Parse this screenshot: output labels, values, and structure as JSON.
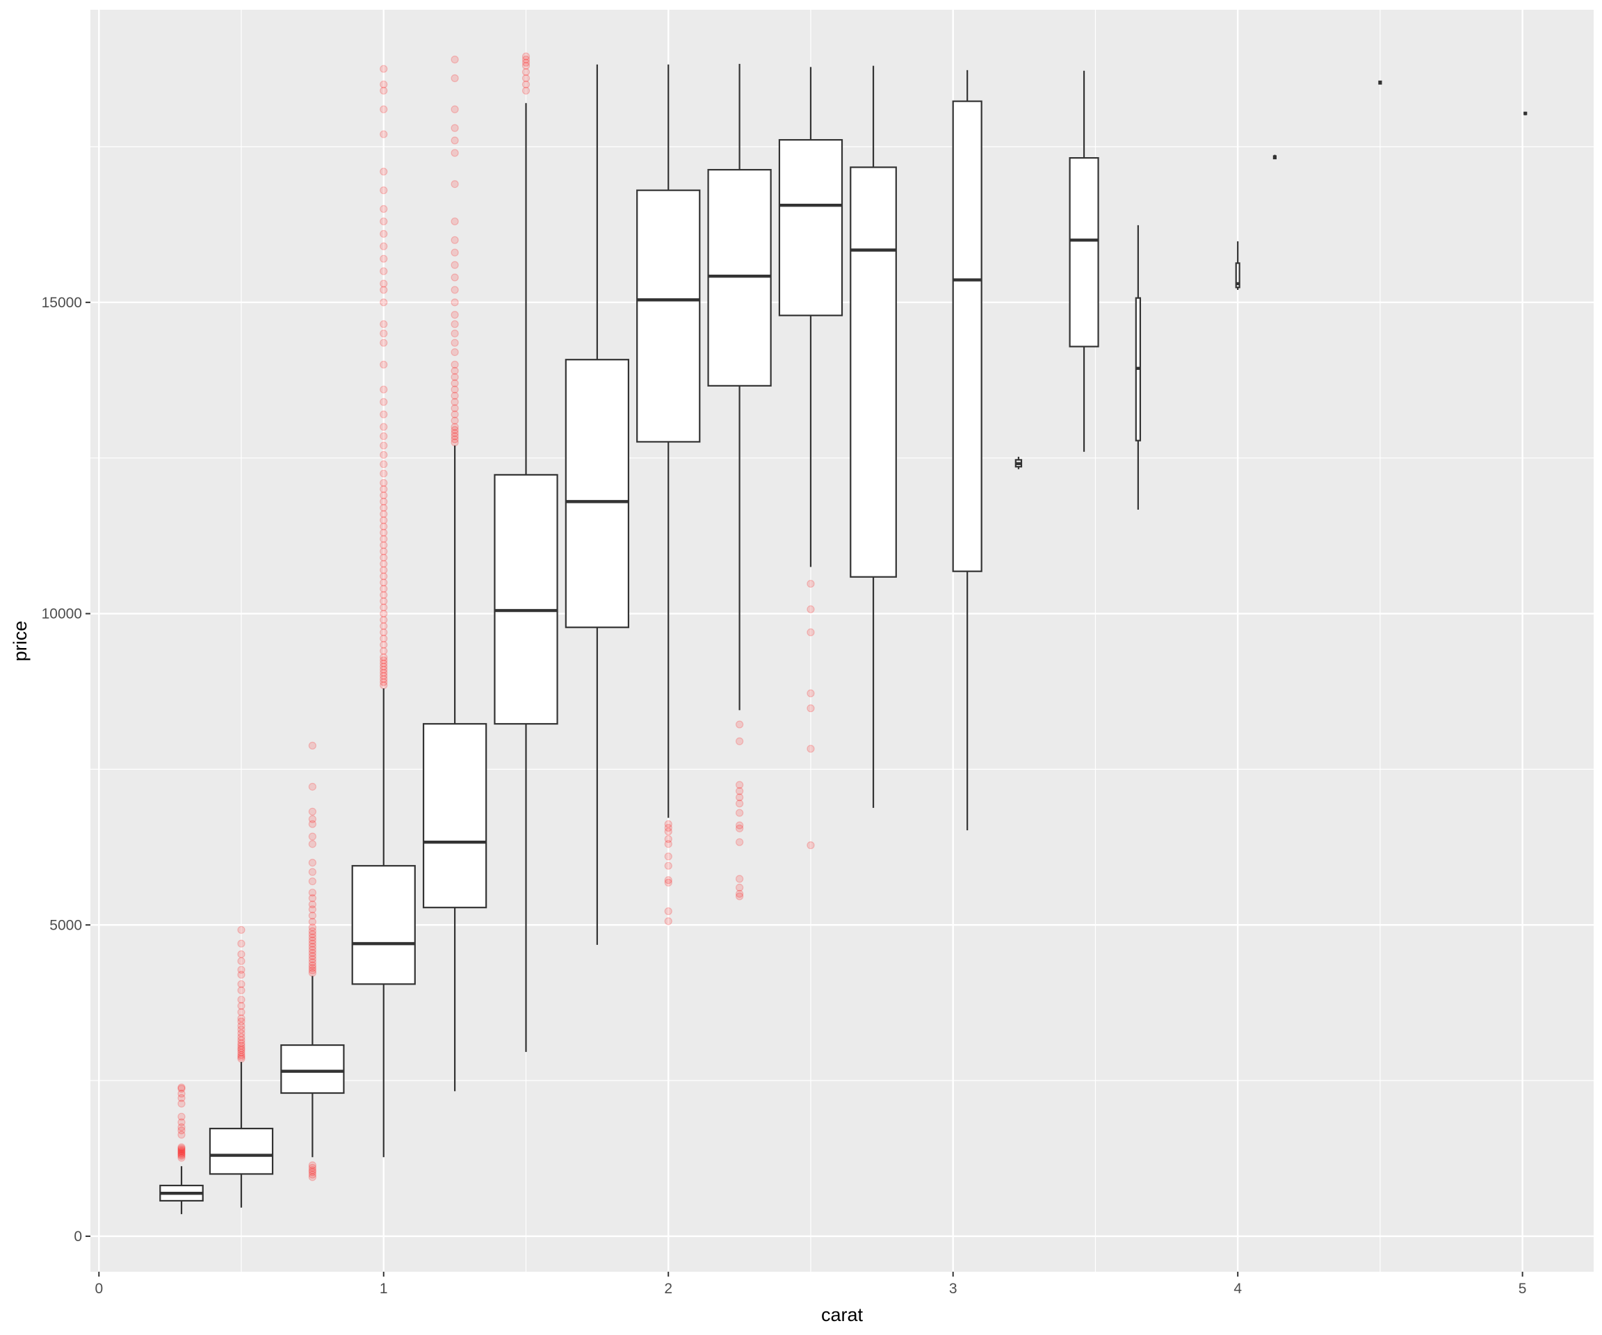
{
  "chart_data": {
    "type": "boxplot",
    "title": "",
    "xlabel": "carat",
    "ylabel": "price",
    "xlim": [
      -0.03,
      5.25
    ],
    "ylim": [
      -570,
      19700
    ],
    "x_ticks": [
      0,
      1,
      2,
      3,
      4,
      5
    ],
    "y_ticks": [
      0,
      5000,
      10000,
      15000
    ],
    "grid": true,
    "panel_background": "#ebebeb",
    "grid_color": "#ffffff",
    "box_fill": "#ffffff",
    "box_line": "#333333",
    "outlier_color": "#ff0000",
    "outlier_alpha": 0.15,
    "boxes": [
      {
        "x": 0.29,
        "width": 0.15,
        "ymin": 355,
        "q1": 570,
        "median": 690,
        "q3": 815,
        "ymax": 1125,
        "outliers": [
          1260,
          1290,
          1310,
          1330,
          1350,
          1370,
          1390,
          1410,
          1430,
          1630,
          1700,
          1750,
          1830,
          1920,
          2130,
          2220,
          2290,
          2370,
          2390
        ]
      },
      {
        "x": 0.5,
        "width": 0.22,
        "ymin": 460,
        "q1": 1000,
        "median": 1300,
        "q3": 1730,
        "ymax": 2800,
        "outliers": [
          2850,
          2880,
          2910,
          2950,
          2990,
          3020,
          3060,
          3100,
          3150,
          3200,
          3260,
          3320,
          3380,
          3450,
          3500,
          3600,
          3700,
          3800,
          3950,
          4050,
          4200,
          4280,
          4420,
          4530,
          4700,
          4920
        ]
      },
      {
        "x": 0.75,
        "width": 0.22,
        "ymin": 1270,
        "q1": 2300,
        "median": 2650,
        "q3": 3070,
        "ymax": 4180,
        "outliers": [
          950,
          990,
          1030,
          1060,
          1100,
          1140,
          4230,
          4270,
          4310,
          4350,
          4400,
          4450,
          4500,
          4550,
          4600,
          4650,
          4700,
          4750,
          4800,
          4850,
          4900,
          4960,
          5050,
          5150,
          5250,
          5330,
          5430,
          5520,
          5700,
          5850,
          6000,
          6300,
          6420,
          6620,
          6700,
          6820,
          7220,
          7880
        ]
      },
      {
        "x": 1.0,
        "width": 0.22,
        "ymin": 1270,
        "q1": 4050,
        "median": 4700,
        "q3": 5950,
        "ymax": 8800,
        "outliers": [
          8850,
          8900,
          8950,
          9000,
          9050,
          9100,
          9150,
          9200,
          9250,
          9300,
          9400,
          9500,
          9600,
          9700,
          9800,
          9900,
          10000,
          10100,
          10200,
          10300,
          10400,
          10500,
          10600,
          10700,
          10800,
          10900,
          11000,
          11100,
          11200,
          11300,
          11400,
          11500,
          11600,
          11700,
          11800,
          11900,
          12000,
          12100,
          12250,
          12400,
          12550,
          12700,
          12850,
          13000,
          13200,
          13400,
          13600,
          14000,
          14350,
          14500,
          14650,
          15000,
          15200,
          15300,
          15500,
          15700,
          15900,
          16100,
          16300,
          16500,
          16800,
          17100,
          17700,
          18100,
          18400,
          18500,
          18750
        ]
      },
      {
        "x": 1.25,
        "width": 0.22,
        "ymin": 2330,
        "q1": 5280,
        "median": 6330,
        "q3": 8230,
        "ymax": 12700,
        "outliers": [
          12750,
          12800,
          12850,
          12900,
          12950,
          13000,
          13100,
          13200,
          13300,
          13400,
          13500,
          13600,
          13700,
          13800,
          13900,
          14000,
          14200,
          14350,
          14500,
          14650,
          14800,
          15000,
          15200,
          15400,
          15600,
          15800,
          16000,
          16300,
          16900,
          17400,
          17600,
          17800,
          18100,
          18600,
          18900
        ]
      },
      {
        "x": 1.5,
        "width": 0.22,
        "ymin": 2960,
        "q1": 8230,
        "median": 10050,
        "q3": 12230,
        "ymax": 18200,
        "outliers": [
          18400,
          18500,
          18600,
          18700,
          18800,
          18850,
          18900,
          18950
        ]
      },
      {
        "x": 1.75,
        "width": 0.22,
        "ymin": 4680,
        "q1": 9780,
        "median": 11800,
        "q3": 14080,
        "ymax": 18820,
        "outliers": []
      },
      {
        "x": 2.0,
        "width": 0.22,
        "ymin": 6720,
        "q1": 12760,
        "median": 15040,
        "q3": 16800,
        "ymax": 18820,
        "outliers": [
          5060,
          5220,
          5680,
          5720,
          5950,
          6100,
          6300,
          6380,
          6500,
          6560,
          6620
        ]
      },
      {
        "x": 2.25,
        "width": 0.22,
        "ymin": 8450,
        "q1": 13660,
        "median": 15420,
        "q3": 17130,
        "ymax": 18830,
        "outliers": [
          5460,
          5500,
          5600,
          5740,
          6330,
          6550,
          6600,
          6800,
          6950,
          7050,
          7150,
          7250,
          7950,
          8220
        ]
      },
      {
        "x": 2.5,
        "width": 0.22,
        "ymin": 10750,
        "q1": 14790,
        "median": 16560,
        "q3": 17610,
        "ymax": 18780,
        "outliers": [
          6280,
          7830,
          8480,
          8720,
          9700,
          10070,
          10480
        ]
      },
      {
        "x": 2.72,
        "width": 0.16,
        "ymin": 6880,
        "q1": 10590,
        "median": 15840,
        "q3": 17170,
        "ymax": 18800,
        "outliers": []
      },
      {
        "x": 3.05,
        "width": 0.1,
        "ymin": 6520,
        "q1": 10680,
        "median": 15360,
        "q3": 18230,
        "ymax": 18730,
        "outliers": []
      },
      {
        "x": 3.23,
        "width": 0.02,
        "ymin": 12320,
        "q1": 12360,
        "median": 12410,
        "q3": 12470,
        "ymax": 12520,
        "outliers": []
      },
      {
        "x": 3.46,
        "width": 0.1,
        "ymin": 12600,
        "q1": 14290,
        "median": 16000,
        "q3": 17320,
        "ymax": 18720,
        "outliers": []
      },
      {
        "x": 3.65,
        "width": 0.015,
        "ymin": 11670,
        "q1": 12780,
        "median": 13940,
        "q3": 15070,
        "ymax": 16240,
        "outliers": []
      },
      {
        "x": 4.0,
        "width": 0.012,
        "ymin": 15200,
        "q1": 15240,
        "median": 15300,
        "q3": 15630,
        "ymax": 15980,
        "outliers": []
      },
      {
        "x": 4.13,
        "width": 0.004,
        "ymin": 17300,
        "q1": 17310,
        "median": 17330,
        "q3": 17350,
        "ymax": 17370,
        "outliers": []
      },
      {
        "x": 4.5,
        "width": 0.004,
        "ymin": 18500,
        "q1": 18510,
        "median": 18530,
        "q3": 18550,
        "ymax": 18560,
        "outliers": []
      },
      {
        "x": 5.01,
        "width": 0.004,
        "ymin": 18010,
        "q1": 18020,
        "median": 18030,
        "q3": 18050,
        "ymax": 18060,
        "outliers": []
      }
    ]
  }
}
